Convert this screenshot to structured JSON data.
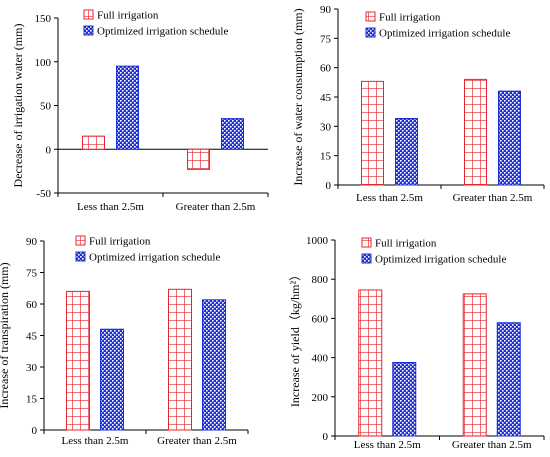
{
  "colors": {
    "full_irrigation": "#e8242c",
    "optimized": "#1f2fd6",
    "axis": "#000000"
  },
  "chart_data": [
    {
      "type": "bar",
      "ylabel": "Decrease of irrigation water (mm)",
      "xlabel": "",
      "ylim": [
        -50,
        150
      ],
      "yticks": [
        -50,
        0,
        50,
        100,
        150
      ],
      "ytick_labels": [
        "-50",
        "0",
        "50",
        "100",
        "150"
      ],
      "categories": [
        "Less than 2.5m",
        "Greater than 2.5m"
      ],
      "series": [
        {
          "name": "Full irrigation",
          "values": [
            15,
            -23
          ]
        },
        {
          "name": "Optimized irrigation schedule",
          "values": [
            95,
            35
          ]
        }
      ],
      "legend": "top-left"
    },
    {
      "type": "bar",
      "ylabel": "Increase of water consumption (mm)",
      "xlabel": "",
      "ylim": [
        0,
        90
      ],
      "yticks": [
        0,
        15,
        30,
        45,
        60,
        75,
        90
      ],
      "ytick_labels": [
        "0",
        "15",
        "30",
        "45",
        "60",
        "75",
        "90"
      ],
      "categories": [
        "Less than 2.5m",
        "Greater than 2.5m"
      ],
      "series": [
        {
          "name": "Full irrigation",
          "values": [
            53,
            54
          ]
        },
        {
          "name": "Optimized irrigation schedule",
          "values": [
            34,
            48
          ]
        }
      ],
      "legend": "top-left"
    },
    {
      "type": "bar",
      "ylabel": "Increase of transpiration (mm)",
      "xlabel": "",
      "ylim": [
        0,
        90
      ],
      "yticks": [
        0,
        15,
        30,
        45,
        60,
        75,
        90
      ],
      "ytick_labels": [
        "0",
        "15",
        "30",
        "45",
        "60",
        "75",
        "90"
      ],
      "categories": [
        "Less than 2.5m",
        "Greater than 2.5m"
      ],
      "series": [
        {
          "name": "Full irrigation",
          "values": [
            66,
            67
          ]
        },
        {
          "name": "Optimized irrigation schedule",
          "values": [
            48,
            62
          ]
        }
      ],
      "legend": "top-left"
    },
    {
      "type": "bar",
      "ylabel": "Increase of yield（kg/hm²）",
      "xlabel": "",
      "ylim": [
        0,
        1000
      ],
      "yticks": [
        0,
        200,
        400,
        600,
        800,
        1000
      ],
      "ytick_labels": [
        "0",
        "200",
        "400",
        "600",
        "800",
        "1000"
      ],
      "categories": [
        "Less than 2.5m",
        "Greater than 2.5m"
      ],
      "series": [
        {
          "name": "Full irrigation",
          "values": [
            745,
            725
          ]
        },
        {
          "name": "Optimized irrigation schedule",
          "values": [
            375,
            578
          ]
        }
      ],
      "legend": "top-left"
    }
  ]
}
